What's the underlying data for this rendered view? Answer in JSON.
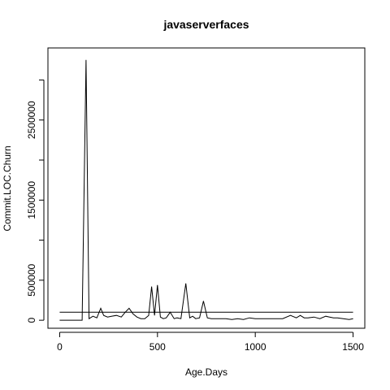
{
  "chart_data": {
    "type": "line",
    "title": "javaserverfaces",
    "xlabel": "Age.Days",
    "ylabel": "Commit.LOC.Churn",
    "xlim": [
      -60,
      1560
    ],
    "ylim": [
      -100000,
      3400000
    ],
    "x_ticks": [
      0,
      500,
      1000,
      1500
    ],
    "x_tick_labels": [
      "0",
      "500",
      "1000",
      "1500"
    ],
    "y_ticks": [
      0,
      500000,
      1500000,
      2500000
    ],
    "y_tick_labels": [
      "0",
      "500000",
      "1500000",
      "2500000"
    ],
    "y_minor_ticks": [
      1000000,
      2000000,
      3000000
    ],
    "grid": false,
    "legend": "none",
    "series": [
      {
        "x": [
          0,
          50,
          100,
          115,
          135,
          150,
          170,
          190,
          210,
          225,
          245,
          265,
          290,
          315,
          335,
          355,
          375,
          395,
          415,
          435,
          455,
          470,
          485,
          500,
          515,
          530,
          545,
          565,
          585,
          600,
          620,
          645,
          665,
          680,
          695,
          715,
          735,
          755,
          775,
          790,
          805,
          825,
          850,
          880,
          910,
          940,
          970,
          1000,
          1030,
          1060,
          1100,
          1140,
          1180,
          1210,
          1230,
          1250,
          1270,
          1300,
          1330,
          1360,
          1380,
          1400,
          1420,
          1450,
          1480,
          1500
        ],
        "y": [
          0,
          0,
          0,
          0,
          3250000,
          20000,
          50000,
          30000,
          150000,
          60000,
          40000,
          50000,
          60000,
          40000,
          100000,
          150000,
          80000,
          40000,
          20000,
          20000,
          60000,
          420000,
          60000,
          440000,
          40000,
          20000,
          30000,
          100000,
          20000,
          30000,
          20000,
          460000,
          30000,
          50000,
          20000,
          30000,
          240000,
          30000,
          20000,
          20000,
          20000,
          20000,
          20000,
          10000,
          20000,
          10000,
          30000,
          20000,
          20000,
          20000,
          20000,
          20000,
          60000,
          30000,
          60000,
          30000,
          30000,
          40000,
          20000,
          50000,
          40000,
          30000,
          30000,
          20000,
          10000,
          20000
        ]
      },
      {
        "type": "hline",
        "y": 100000,
        "x_from": 0,
        "x_to": 1500
      }
    ]
  }
}
